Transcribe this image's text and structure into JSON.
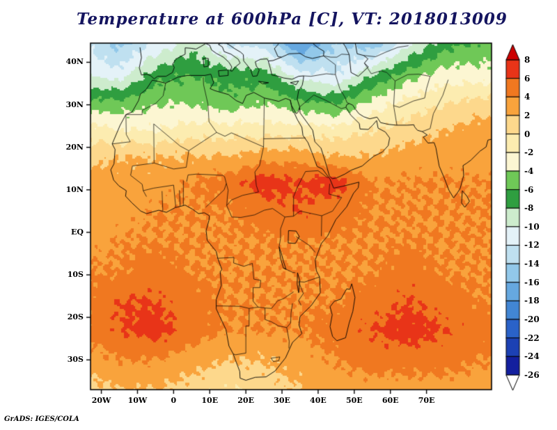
{
  "title": "Temperature at 600hPa [C], VT: 2018013009",
  "credit": "GrADS: IGES/COLA",
  "colors": {
    "title_text": "#14145f",
    "axis_text": "#000000",
    "frame": "#000000",
    "background": "#ffffff"
  },
  "axes": {
    "lat_ticks": [
      {
        "label": "40N",
        "value": 40
      },
      {
        "label": "30N",
        "value": 30
      },
      {
        "label": "20N",
        "value": 20
      },
      {
        "label": "10N",
        "value": 10
      },
      {
        "label": "EQ",
        "value": 0
      },
      {
        "label": "10S",
        "value": -10
      },
      {
        "label": "20S",
        "value": -20
      },
      {
        "label": "30S",
        "value": -30
      }
    ],
    "lon_ticks": [
      {
        "label": "20W",
        "value": -20
      },
      {
        "label": "10W",
        "value": -10
      },
      {
        "label": "0",
        "value": 0
      },
      {
        "label": "10E",
        "value": 10
      },
      {
        "label": "20E",
        "value": 20
      },
      {
        "label": "30E",
        "value": 30
      },
      {
        "label": "40E",
        "value": 40
      },
      {
        "label": "50E",
        "value": 50
      },
      {
        "label": "60E",
        "value": 60
      },
      {
        "label": "70E",
        "value": 70
      }
    ]
  },
  "colorbar": {
    "labels": [
      "8",
      "6",
      "4",
      "2",
      "0",
      "-2",
      "-4",
      "-6",
      "-8",
      "-10",
      "-12",
      "-14",
      "-16",
      "-18",
      "-20",
      "-22",
      "-24",
      "-26"
    ],
    "levels": [
      -26,
      -24,
      -22,
      -20,
      -18,
      -16,
      -14,
      -12,
      -10,
      -8,
      -6,
      -4,
      -2,
      0,
      2,
      4,
      6,
      8
    ],
    "colors_cold_to_warm": [
      "#131f9e",
      "#1c41b4",
      "#2a62c8",
      "#4286d4",
      "#66a8e0",
      "#92c8ea",
      "#bfe0f0",
      "#e4f2f8",
      "#cdeccd",
      "#2f9e40",
      "#6fc857",
      "#fcf6d2",
      "#fcecb0",
      "#fdd88c",
      "#f9a33c",
      "#f07820",
      "#e83418"
    ],
    "over_color": "#cc0000",
    "under_color": "#ffffff"
  },
  "chart_data": {
    "type": "heatmap",
    "title": "Temperature at 600hPa [C], VT: 2018013009",
    "variable": "Temperature",
    "pressure_level": "600hPa",
    "units": "C",
    "valid_time": "2018013009",
    "contour_interval": 2,
    "value_range": [
      -26,
      8
    ],
    "lon_domain": [
      -23,
      88
    ],
    "lat_domain": [
      -37,
      44.5
    ],
    "grid_lons": [
      -25,
      -15,
      -5,
      5,
      15,
      25,
      35,
      45,
      55,
      65,
      75,
      85
    ],
    "grid_lats": [
      45,
      37,
      30,
      24,
      18,
      12,
      5,
      -2,
      -9,
      -16,
      -23,
      -30,
      -37
    ],
    "grid_temps_c": [
      [
        -12,
        -15,
        -12,
        -9,
        -13,
        -13,
        -19,
        -14,
        -16,
        -11,
        -7,
        -6
      ],
      [
        -10,
        -11,
        -7,
        -6,
        -7,
        -7,
        -11,
        -12,
        -8,
        -5,
        -3,
        -3
      ],
      [
        -5,
        -5,
        -4,
        -4,
        -5,
        -4,
        -5,
        -6,
        -3,
        -1,
        0,
        1
      ],
      [
        -1,
        -2,
        -2,
        -1,
        -1,
        -1,
        -1,
        -1,
        0,
        1,
        2,
        3
      ],
      [
        1,
        2,
        2,
        2,
        2,
        3,
        3,
        2,
        2,
        3,
        3,
        3
      ],
      [
        3,
        3,
        3,
        4,
        5,
        7,
        6,
        7,
        4,
        4,
        4,
        4
      ],
      [
        3,
        3,
        4,
        4,
        4,
        5,
        6,
        5,
        4,
        4,
        4,
        4
      ],
      [
        3,
        4,
        4,
        4,
        4,
        4,
        4,
        4,
        4,
        4,
        4,
        4
      ],
      [
        4,
        4,
        5,
        4,
        4,
        4,
        4,
        4,
        4,
        5,
        4,
        4
      ],
      [
        4,
        6,
        6,
        5,
        4,
        4,
        4,
        4,
        5,
        6,
        5,
        4
      ],
      [
        4,
        6,
        7,
        5,
        4,
        4,
        4,
        5,
        6,
        7,
        6,
        5
      ],
      [
        3,
        4,
        4,
        3,
        2,
        2,
        3,
        4,
        5,
        5,
        5,
        4
      ],
      [
        1,
        2,
        2,
        1,
        0,
        1,
        2,
        3,
        3,
        3,
        3,
        3
      ]
    ]
  }
}
